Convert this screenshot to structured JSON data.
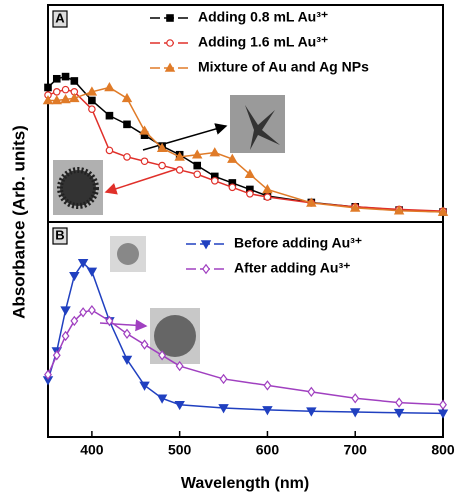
{
  "chart_data": [
    {
      "type": "line",
      "panel_label": "A",
      "ylabel": "Absorbance (Arb. units)",
      "x": [
        350,
        360,
        370,
        380,
        400,
        420,
        440,
        460,
        480,
        500,
        520,
        540,
        560,
        580,
        600,
        650,
        700,
        750,
        800
      ],
      "xlim": [
        350,
        800
      ],
      "ylim": [
        0,
        1
      ],
      "series": [
        {
          "name": "Adding 0.8 mL Au³⁺",
          "color": "#000000",
          "marker": "square",
          "values": [
            0.62,
            0.66,
            0.67,
            0.65,
            0.56,
            0.49,
            0.45,
            0.4,
            0.35,
            0.31,
            0.26,
            0.21,
            0.18,
            0.15,
            0.12,
            0.09,
            0.07,
            0.055,
            0.046
          ]
        },
        {
          "name": "Adding 1.6 mL Au³⁺",
          "color": "#e0302a",
          "marker": "open-circle",
          "values": [
            0.585,
            0.6,
            0.61,
            0.6,
            0.52,
            0.33,
            0.3,
            0.28,
            0.26,
            0.24,
            0.22,
            0.19,
            0.16,
            0.13,
            0.115,
            0.088,
            0.07,
            0.058,
            0.05
          ]
        },
        {
          "name": "Mixture of Au and Ag NPs",
          "color": "#e07b28",
          "marker": "triangle",
          "values": [
            0.56,
            0.56,
            0.565,
            0.57,
            0.6,
            0.62,
            0.57,
            0.42,
            0.34,
            0.3,
            0.31,
            0.32,
            0.29,
            0.22,
            0.15,
            0.088,
            0.065,
            0.052,
            0.046
          ]
        }
      ]
    },
    {
      "type": "line",
      "panel_label": "B",
      "xlabel": "Wavelength (nm)",
      "x": [
        350,
        360,
        370,
        380,
        390,
        400,
        420,
        440,
        460,
        480,
        500,
        550,
        600,
        650,
        700,
        750,
        800
      ],
      "xlim": [
        350,
        800
      ],
      "xticks": [
        400,
        500,
        600,
        700,
        800
      ],
      "ylim": [
        0,
        1
      ],
      "series": [
        {
          "name": "Before adding Au³⁺",
          "color": "#2040c0",
          "marker": "down-triangle",
          "values": [
            0.265,
            0.4,
            0.59,
            0.75,
            0.81,
            0.77,
            0.54,
            0.36,
            0.24,
            0.18,
            0.15,
            0.135,
            0.126,
            0.12,
            0.116,
            0.113,
            0.11
          ]
        },
        {
          "name": "After adding Au³⁺",
          "color": "#a040c0",
          "marker": "open-diamond",
          "values": [
            0.29,
            0.38,
            0.47,
            0.54,
            0.58,
            0.59,
            0.54,
            0.48,
            0.43,
            0.38,
            0.33,
            0.27,
            0.24,
            0.21,
            0.18,
            0.16,
            0.15
          ]
        }
      ]
    }
  ]
}
